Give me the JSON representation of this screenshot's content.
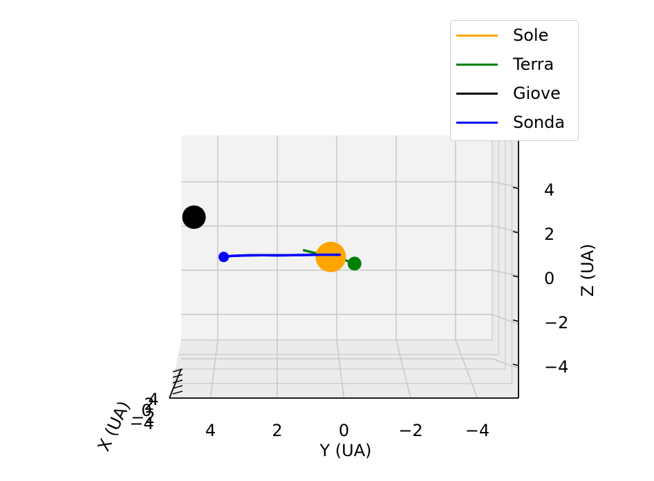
{
  "chart_data": {
    "type": "line",
    "projection": "3d",
    "xlabel": "X (UA)",
    "ylabel": "Y (UA)",
    "zlabel": "Z (UA)",
    "x_ticks": [
      "−4",
      "−2",
      "0",
      "2",
      "4"
    ],
    "y_ticks": [
      "4",
      "2",
      "0",
      "−2",
      "−4"
    ],
    "z_ticks": [
      "4",
      "2",
      "0",
      "−2",
      "−4"
    ],
    "ylim": [
      5,
      -5
    ],
    "zlim": [
      -5,
      5
    ],
    "grid": true,
    "legend_position": "top-right",
    "series": [
      {
        "name": "Sole",
        "color": "#ffa500",
        "trajectory": {
          "y": [
            0.2
          ],
          "z": [
            0.6
          ]
        },
        "current": {
          "y": 0.2,
          "z": 0.6
        }
      },
      {
        "name": "Terra",
        "color": "#008000",
        "trajectory": {
          "y": [
            1.1,
            0.2,
            -0.2,
            -0.6
          ],
          "z": [
            0.9,
            0.6,
            0.5,
            0.3
          ]
        },
        "current": {
          "y": -0.6,
          "z": 0.3
        }
      },
      {
        "name": "Giove",
        "color": "#000000",
        "trajectory": {
          "y": [
            4.8
          ],
          "z": [
            2.4
          ]
        },
        "current": {
          "y": 4.8,
          "z": 2.4
        }
      },
      {
        "name": "Sonda",
        "color": "#0000ff",
        "trajectory": {
          "y": [
            3.8,
            3.5,
            3.0,
            2.5,
            2.0,
            1.5,
            1.0,
            0.5,
            0.0,
            -0.1
          ],
          "z": [
            0.6,
            0.65,
            0.67,
            0.68,
            0.67,
            0.68,
            0.69,
            0.7,
            0.7,
            0.7
          ]
        },
        "current": {
          "y": 3.8,
          "z": 0.6
        }
      }
    ]
  }
}
